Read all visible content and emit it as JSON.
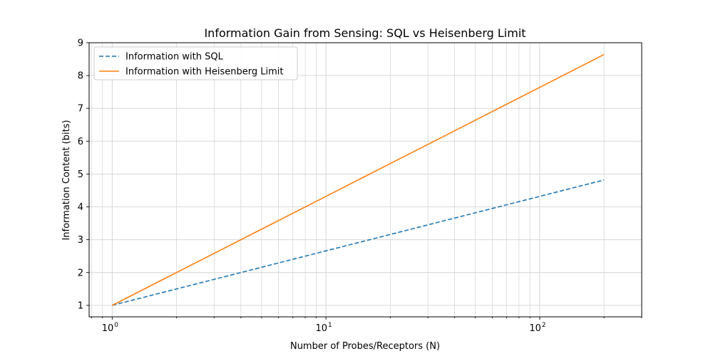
{
  "chart_data": {
    "type": "line",
    "title": "Information Gain from Sensing: SQL vs Heisenberg Limit",
    "xlabel": "Number of Probes/Receptors (N)",
    "ylabel": "Information Content (bits)",
    "xscale": "log",
    "xlim": [
      0.78,
      300
    ],
    "ylim": [
      0.65,
      9.0
    ],
    "x_ticks": [
      {
        "value": 1,
        "base": "10",
        "exp": "0"
      },
      {
        "value": 10,
        "base": "10",
        "exp": "1"
      },
      {
        "value": 100,
        "base": "10",
        "exp": "2"
      }
    ],
    "y_ticks": [
      "1",
      "2",
      "3",
      "4",
      "5",
      "6",
      "7",
      "8",
      "9"
    ],
    "grid": true,
    "legend_position": "top-left",
    "series": [
      {
        "name": "Information with SQL",
        "style": "dashed",
        "color": "#1f77b4",
        "x": [
          1,
          2,
          5,
          10,
          20,
          50,
          100,
          200
        ],
        "y": [
          1.0,
          1.5,
          2.16,
          2.66,
          3.16,
          3.82,
          4.32,
          4.82
        ]
      },
      {
        "name": "Information with Heisenberg Limit",
        "style": "solid",
        "color": "#ff7f0e",
        "x": [
          1,
          2,
          5,
          10,
          20,
          50,
          100,
          200
        ],
        "y": [
          1.0,
          2.0,
          3.32,
          4.32,
          5.32,
          6.64,
          7.64,
          8.64
        ]
      }
    ]
  }
}
